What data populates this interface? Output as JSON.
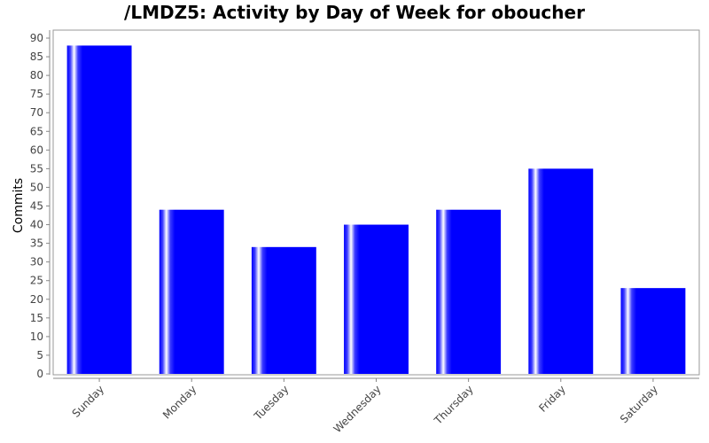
{
  "chart_data": {
    "type": "bar",
    "title": "/LMDZ5: Activity by Day of Week for oboucher",
    "xlabel": "",
    "ylabel": "Commits",
    "categories": [
      "Sunday",
      "Monday",
      "Tuesday",
      "Wednesday",
      "Thursday",
      "Friday",
      "Saturday"
    ],
    "values": [
      88,
      44,
      34,
      40,
      44,
      55,
      23
    ],
    "ylim": [
      0,
      90
    ],
    "yticks": [
      0,
      5,
      10,
      15,
      20,
      25,
      30,
      35,
      40,
      45,
      50,
      55,
      60,
      65,
      70,
      75,
      80,
      85,
      90
    ],
    "bar_color": "#0000ff",
    "grid": false,
    "legend": "none"
  }
}
